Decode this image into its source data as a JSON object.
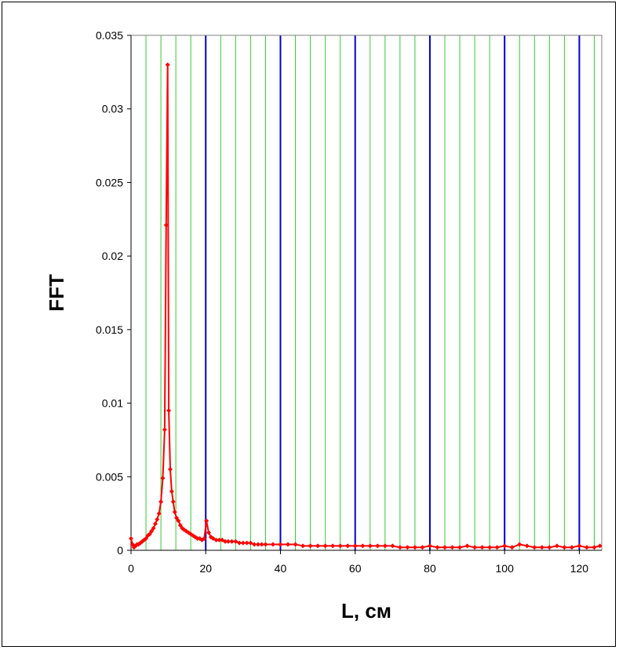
{
  "chart_data": {
    "type": "line",
    "title": "",
    "xlabel": "L, см",
    "ylabel": "FFT",
    "xlim": [
      0,
      126
    ],
    "ylim": [
      0,
      0.035
    ],
    "x_ticks": [
      0,
      20,
      40,
      60,
      80,
      100,
      120
    ],
    "y_ticks": [
      0,
      0.005,
      0.01,
      0.015,
      0.02,
      0.025,
      0.03,
      0.035
    ],
    "x_tick_labels": [
      "0",
      "20",
      "40",
      "60",
      "80",
      "100",
      "120"
    ],
    "y_tick_labels": [
      "0",
      "0.005",
      "0.01",
      "0.015",
      "0.02",
      "0.025",
      "0.03",
      "0.035"
    ],
    "grid": {
      "major_x_step": 20,
      "minor_x_step": 4,
      "major_color": "#0000CC",
      "minor_color": "#33CC33",
      "horizontal": false
    },
    "legend": "none",
    "series": [
      {
        "color": "#FF0000",
        "marker": "diamond",
        "x": [
          0,
          0.4,
          0.8,
          1.2,
          1.6,
          2.0,
          2.5,
          3.0,
          3.5,
          4.0,
          4.5,
          5.0,
          5.5,
          6.0,
          6.5,
          7.0,
          7.5,
          8.0,
          8.5,
          9.0,
          9.4,
          9.8,
          10.1,
          10.5,
          10.9,
          11.3,
          11.7,
          12.2,
          12.7,
          13.2,
          13.7,
          14.2,
          14.8,
          15.4,
          16.0,
          16.6,
          17.2,
          17.8,
          18.4,
          19.0,
          19.6,
          20.2,
          20.8,
          21.4,
          22.0,
          22.8,
          23.6,
          24.4,
          25.2,
          26.0,
          27.0,
          28.0,
          29.0,
          30.0,
          31.0,
          32.0,
          33.0,
          34.0,
          35.0,
          36.0,
          38.0,
          40.0,
          42.0,
          44.0,
          46.0,
          48.0,
          50.0,
          52.0,
          54.0,
          56.0,
          58.0,
          60.0,
          62.0,
          64.0,
          66.0,
          68.0,
          70.0,
          72.0,
          74.0,
          76.0,
          78.0,
          80.0,
          82.0,
          84.0,
          86.0,
          88.0,
          90.0,
          92.0,
          94.0,
          96.0,
          98.0,
          100.0,
          102.0,
          104.0,
          106.0,
          108.0,
          110.0,
          112.0,
          114.0,
          116.0,
          118.0,
          120.0,
          122.0,
          124.0,
          125.5
        ],
        "y": [
          0.0008,
          0.0004,
          0.0002,
          0.0003,
          0.0004,
          0.0004,
          0.0005,
          0.0006,
          0.0007,
          0.0008,
          0.001,
          0.0011,
          0.0013,
          0.0015,
          0.0018,
          0.0021,
          0.0025,
          0.0033,
          0.0049,
          0.0082,
          0.0221,
          0.033,
          0.0095,
          0.0055,
          0.004,
          0.0033,
          0.0026,
          0.0022,
          0.002,
          0.0017,
          0.0015,
          0.0014,
          0.0013,
          0.0012,
          0.0011,
          0.001,
          0.0009,
          0.0008,
          0.0008,
          0.0007,
          0.0008,
          0.002,
          0.0012,
          0.0009,
          0.0008,
          0.0007,
          0.0007,
          0.0007,
          0.0006,
          0.0006,
          0.0006,
          0.0006,
          0.0005,
          0.0005,
          0.0005,
          0.0005,
          0.0004,
          0.0004,
          0.0004,
          0.0004,
          0.0004,
          0.0004,
          0.0004,
          0.0004,
          0.0003,
          0.0003,
          0.0003,
          0.0003,
          0.0003,
          0.0003,
          0.0003,
          0.0003,
          0.0003,
          0.0003,
          0.0003,
          0.0003,
          0.0003,
          0.0002,
          0.0002,
          0.0002,
          0.0002,
          0.0003,
          0.0002,
          0.0002,
          0.0002,
          0.0002,
          0.0003,
          0.0002,
          0.0002,
          0.0002,
          0.0002,
          0.0003,
          0.0002,
          0.0004,
          0.0003,
          0.0002,
          0.0002,
          0.0002,
          0.0003,
          0.0002,
          0.0002,
          0.0003,
          0.0002,
          0.0002,
          0.0003
        ]
      }
    ]
  }
}
